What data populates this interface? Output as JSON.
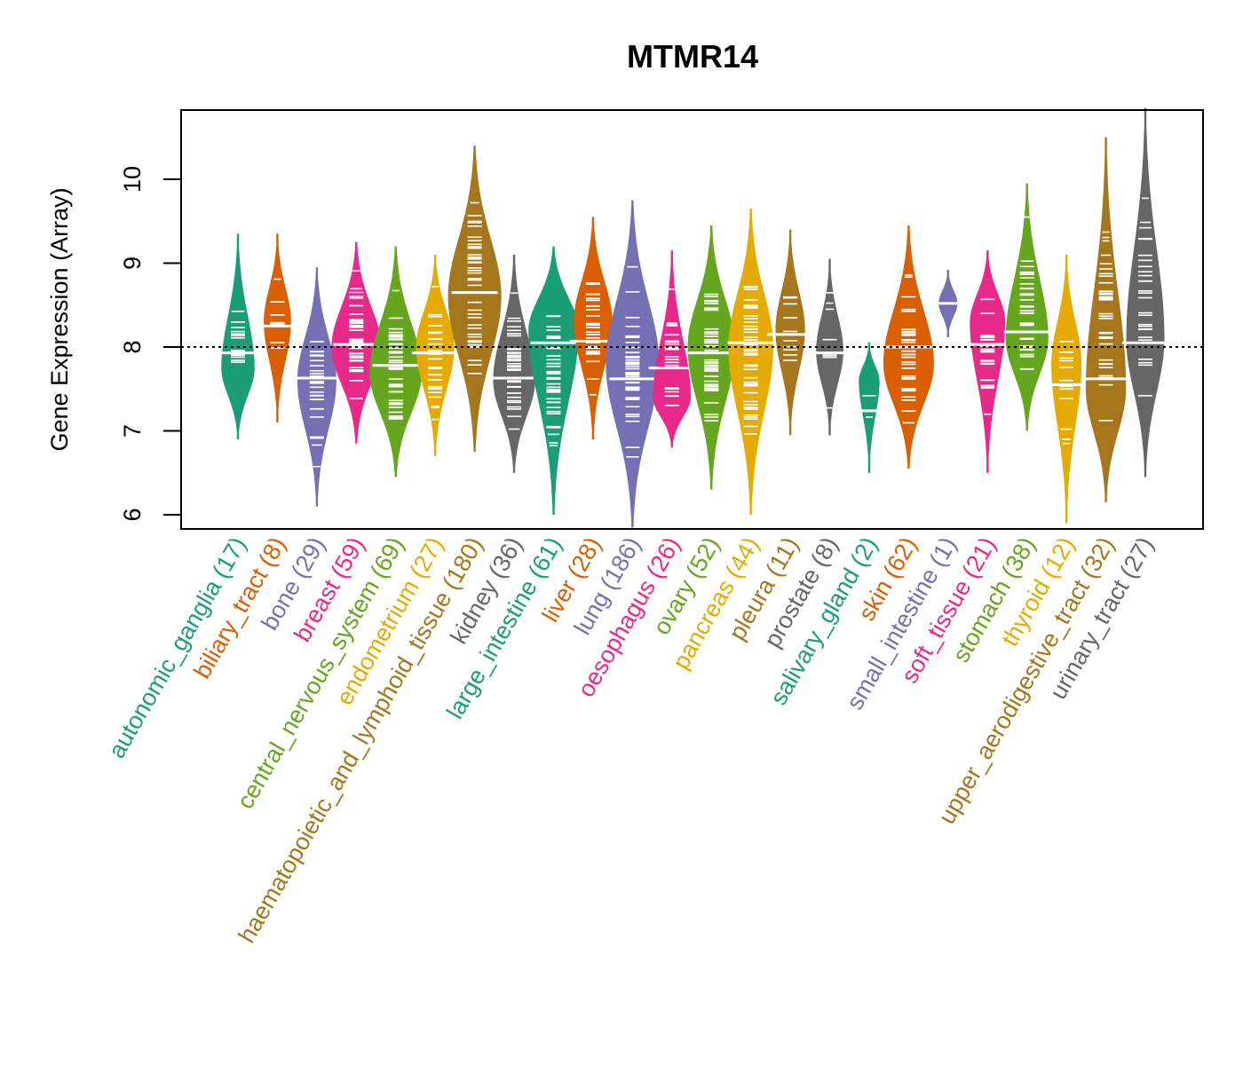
{
  "chart_data": {
    "type": "beanplot",
    "title": "MTMR14",
    "xlabel": "",
    "ylabel": "Gene Expression (Array)",
    "ylim": [
      5.85,
      10.85
    ],
    "yticks": [
      6,
      7,
      8,
      9,
      10
    ],
    "reference_line": 8,
    "grid": false,
    "legend": "none",
    "categories": [
      {
        "name": "autonomic_ganglia",
        "n": 17,
        "color": "#1B9E77",
        "median": 7.93,
        "min": 6.9,
        "max": 9.35,
        "mode": 7.75
      },
      {
        "name": "biliary_tract",
        "n": 8,
        "color": "#D95F02",
        "median": 8.25,
        "min": 7.1,
        "max": 9.35,
        "mode": 8.3
      },
      {
        "name": "bone",
        "n": 29,
        "color": "#7570B3",
        "median": 7.63,
        "min": 6.1,
        "max": 8.95,
        "mode": 7.6
      },
      {
        "name": "breast",
        "n": 59,
        "color": "#E7298A",
        "median": 8.03,
        "min": 6.85,
        "max": 9.25,
        "mode": 8.0
      },
      {
        "name": "central_nervous_system",
        "n": 69,
        "color": "#66A61E",
        "median": 7.78,
        "min": 6.45,
        "max": 9.2,
        "mode": 7.7
      },
      {
        "name": "endometrium",
        "n": 27,
        "color": "#E6AB02",
        "median": 7.93,
        "min": 6.7,
        "max": 9.1,
        "mode": 8.0
      },
      {
        "name": "haematopoietic_and_lymphoid_tissue",
        "n": 180,
        "color": "#A6761D",
        "median": 8.65,
        "min": 6.75,
        "max": 10.4,
        "mode": 8.6
      },
      {
        "name": "kidney",
        "n": 36,
        "color": "#666666",
        "median": 7.63,
        "min": 6.5,
        "max": 9.1,
        "mode": 7.6
      },
      {
        "name": "large_intestine",
        "n": 61,
        "color": "#1B9E77",
        "median": 8.05,
        "min": 6.0,
        "max": 9.2,
        "mode": 8.2
      },
      {
        "name": "liver",
        "n": 28,
        "color": "#D95F02",
        "median": 8.07,
        "min": 6.9,
        "max": 9.55,
        "mode": 8.3
      },
      {
        "name": "lung",
        "n": 186,
        "color": "#7570B3",
        "median": 7.62,
        "min": 5.85,
        "max": 9.75,
        "mode": 7.8
      },
      {
        "name": "oesophagus",
        "n": 26,
        "color": "#E7298A",
        "median": 7.75,
        "min": 6.8,
        "max": 9.15,
        "mode": 7.4
      },
      {
        "name": "ovary",
        "n": 52,
        "color": "#66A61E",
        "median": 7.93,
        "min": 6.3,
        "max": 9.45,
        "mode": 8.0
      },
      {
        "name": "pancreas",
        "n": 44,
        "color": "#E6AB02",
        "median": 8.05,
        "min": 6.0,
        "max": 9.65,
        "mode": 8.0
      },
      {
        "name": "pleura",
        "n": 11,
        "color": "#A6761D",
        "median": 8.15,
        "min": 6.95,
        "max": 9.4,
        "mode": 8.2
      },
      {
        "name": "prostate",
        "n": 8,
        "color": "#666666",
        "median": 7.93,
        "min": 6.95,
        "max": 9.05,
        "mode": 7.95
      },
      {
        "name": "salivary_gland",
        "n": 2,
        "color": "#1B9E77",
        "median": 7.24,
        "min": 6.5,
        "max": 8.05,
        "mode": 7.6
      },
      {
        "name": "skin",
        "n": 62,
        "color": "#D95F02",
        "median": 8.0,
        "min": 6.55,
        "max": 9.45,
        "mode": 7.8
      },
      {
        "name": "small_intestine",
        "n": 1,
        "color": "#7570B3",
        "median": 8.52,
        "min": 8.12,
        "max": 8.92,
        "mode": 8.52
      },
      {
        "name": "soft_tissue",
        "n": 21,
        "color": "#E7298A",
        "median": 8.03,
        "min": 6.5,
        "max": 9.15,
        "mode": 8.3
      },
      {
        "name": "stomach",
        "n": 38,
        "color": "#66A61E",
        "median": 8.18,
        "min": 7.0,
        "max": 9.95,
        "mode": 8.1
      },
      {
        "name": "thyroid",
        "n": 12,
        "color": "#E6AB02",
        "median": 7.55,
        "min": 5.9,
        "max": 9.1,
        "mode": 7.8
      },
      {
        "name": "upper_aerodigestive_tract",
        "n": 32,
        "color": "#A6761D",
        "median": 7.62,
        "min": 6.15,
        "max": 10.5,
        "mode": 7.5
      },
      {
        "name": "urinary_tract",
        "n": 27,
        "color": "#666666",
        "median": 8.05,
        "min": 6.45,
        "max": 10.85,
        "mode": 8.1
      }
    ]
  }
}
